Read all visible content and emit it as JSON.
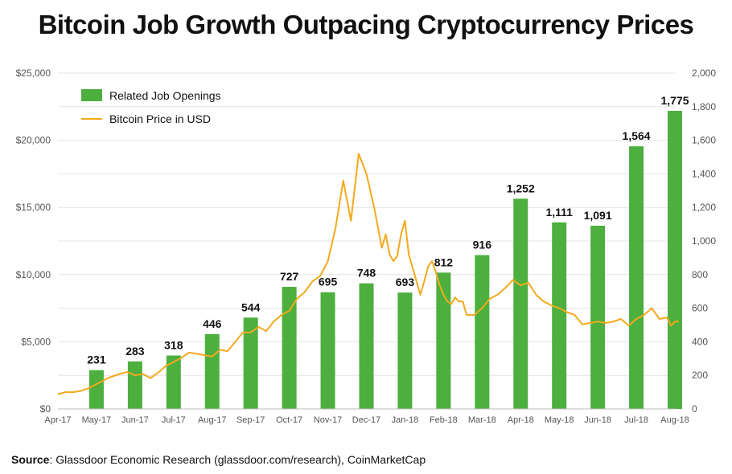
{
  "title": "Bitcoin Job Growth Outpacing Cryptocurrency Prices",
  "source_label": "Source",
  "source_text": ": Glassdoor Economic Research (glassdoor.com/research), CoinMarketCap",
  "chart_data": {
    "type": "bar",
    "x_labels": [
      "Apr-17",
      "May-17",
      "Jun-17",
      "Jul-17",
      "Aug-17",
      "Sep-17",
      "Oct-17",
      "Nov-17",
      "Dec-17",
      "Jan-18",
      "Feb-18",
      "Mar-18",
      "Apr-18",
      "May-18",
      "Jun-18",
      "Jul-18",
      "Aug-18"
    ],
    "left_axis": {
      "ticks": [
        "$0",
        "$5,000",
        "$10,000",
        "$15,000",
        "$20,000",
        "$25,000"
      ],
      "min": 0,
      "max": 25000
    },
    "right_axis": {
      "ticks": [
        "0",
        "200",
        "400",
        "600",
        "800",
        "1,000",
        "1,200",
        "1,400",
        "1,600",
        "1,800",
        "2,000"
      ],
      "min": 0,
      "max": 2000
    },
    "grid": true,
    "legend": {
      "position": "top-left",
      "bar_label": "Related Job Openings",
      "line_label": "Bitcoin Price in USD"
    },
    "colors": {
      "bar": "#4caf3e",
      "line": "#f4a91d"
    },
    "series": [
      {
        "name": "Related Job Openings",
        "axis": "right",
        "categories": [
          "May-17",
          "Jun-17",
          "Jul-17",
          "Aug-17",
          "Sep-17",
          "Oct-17",
          "Nov-17",
          "Dec-17",
          "Jan-18",
          "Feb-18",
          "Mar-18",
          "Apr-18",
          "May-18",
          "Jun-18",
          "Jul-18",
          "Aug-18"
        ],
        "values": [
          231,
          283,
          318,
          446,
          544,
          727,
          695,
          748,
          693,
          812,
          916,
          1252,
          1111,
          1091,
          1564,
          1775
        ],
        "labels": [
          "231",
          "283",
          "318",
          "446",
          "544",
          "727",
          "695",
          "748",
          "693",
          "812",
          "916",
          "1,252",
          "1,111",
          "1,091",
          "1,564",
          "1,775"
        ]
      },
      {
        "name": "Bitcoin Price in USD",
        "axis": "left",
        "x": [
          0,
          0.2,
          0.4,
          0.6,
          0.8,
          1.0,
          1.3,
          1.6,
          1.8,
          2.0,
          2.2,
          2.4,
          2.6,
          2.8,
          3.0,
          3.2,
          3.4,
          3.6,
          3.8,
          4.0,
          4.2,
          4.4,
          4.6,
          4.8,
          5.0,
          5.2,
          5.4,
          5.6,
          5.8,
          6.0,
          6.2,
          6.4,
          6.6,
          6.8,
          7.0,
          7.2,
          7.4,
          7.6,
          7.8,
          8.0,
          8.2,
          8.3,
          8.4,
          8.5,
          8.6,
          8.7,
          8.8,
          8.9,
          9.0,
          9.1,
          9.2,
          9.3,
          9.4,
          9.5,
          9.6,
          9.7,
          9.8,
          9.9,
          10.0,
          10.1,
          10.2,
          10.3,
          10.4,
          10.5,
          10.6,
          10.8,
          11.0,
          11.2,
          11.4,
          11.6,
          11.8,
          12.0,
          12.2,
          12.4,
          12.6,
          12.8,
          13.0,
          13.2,
          13.4,
          13.6,
          13.8,
          14.0,
          14.2,
          14.4,
          14.6,
          14.8,
          15.0,
          15.2,
          15.4,
          15.6,
          15.8,
          15.9,
          16.0,
          16.1
        ],
        "y": [
          1100,
          1250,
          1250,
          1350,
          1550,
          1850,
          2300,
          2600,
          2750,
          2500,
          2600,
          2300,
          2700,
          3200,
          3500,
          3800,
          4200,
          4100,
          4000,
          3900,
          4400,
          4300,
          5000,
          5700,
          5700,
          6100,
          5800,
          6500,
          7000,
          7300,
          8200,
          8700,
          9500,
          9900,
          11000,
          13500,
          17000,
          14000,
          19000,
          17500,
          15000,
          13500,
          12000,
          13000,
          11500,
          11000,
          11400,
          13000,
          14000,
          11500,
          10500,
          9500,
          8500,
          9500,
          10600,
          11000,
          10200,
          9200,
          8500,
          8000,
          7800,
          8300,
          8000,
          8000,
          7000,
          7000,
          7500,
          8200,
          8500,
          9000,
          9600,
          9200,
          9400,
          8500,
          8000,
          7700,
          7500,
          7200,
          7000,
          6300,
          6400,
          6500,
          6400,
          6500,
          6700,
          6200,
          6700,
          7000,
          7500,
          6700,
          6800,
          6200,
          6500,
          6500
        ],
        "note": "x is position in months from Apr-17"
      }
    ]
  }
}
